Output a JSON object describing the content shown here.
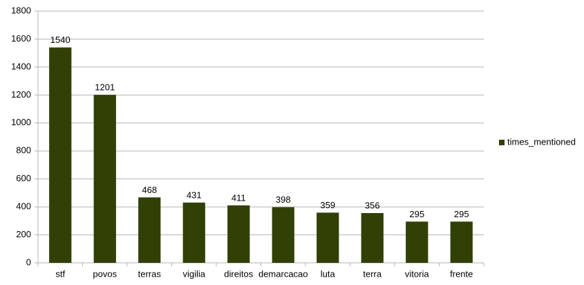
{
  "chart_data": {
    "type": "bar",
    "categories": [
      "stf",
      "povos",
      "terras",
      "vigilia",
      "direitos",
      "demarcacao",
      "luta",
      "terra",
      "vitoria",
      "frente"
    ],
    "series": [
      {
        "name": "times_mentioned",
        "color": "#314004",
        "values": [
          1540,
          1201,
          468,
          431,
          411,
          398,
          359,
          356,
          295,
          295
        ]
      }
    ],
    "ylim": [
      0,
      1800
    ],
    "yticks": [
      0,
      200,
      400,
      600,
      800,
      1000,
      1200,
      1400,
      1600,
      1800
    ],
    "grid": true,
    "legend": "right",
    "value_labels_shown": true
  }
}
